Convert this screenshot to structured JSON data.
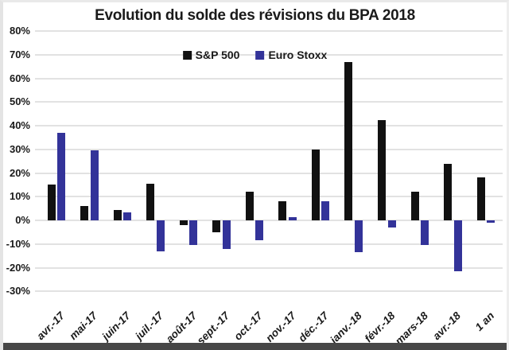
{
  "chart_data": {
    "type": "bar",
    "title": "Evolution du solde des révisions du BPA 2018",
    "categories": [
      "avr.-17",
      "mai-17",
      "juin-17",
      "juil.-17",
      "août-17",
      "sept.-17",
      "oct.-17",
      "nov.-17",
      "déc.-17",
      "janv.-18",
      "févr.-18",
      "mars-18",
      "avr.-18",
      "1 an"
    ],
    "series": [
      {
        "name": "S&P 500",
        "color": "#111111",
        "values": [
          15,
          6,
          4.5,
          15.5,
          -2,
          -5,
          12,
          8,
          30,
          67,
          42.5,
          12,
          24,
          18
        ]
      },
      {
        "name": "Euro Stoxx",
        "color": "#333399",
        "values": [
          37,
          29.5,
          3.5,
          -13,
          -10.5,
          -12,
          -8.5,
          1.5,
          8,
          -13.5,
          -3,
          -10.5,
          -21.5,
          -1
        ]
      }
    ],
    "ylabel": "",
    "xlabel": "",
    "ylim": [
      -30,
      80
    ],
    "ytick_step": 10,
    "ytick_labels": [
      "80%",
      "70%",
      "60%",
      "50%",
      "40%",
      "30%",
      "20%",
      "10%",
      "0%",
      "-10%",
      "-20%",
      "-30%"
    ],
    "grid": true,
    "legend_position": "top-center",
    "colors": {
      "sp500": "#111111",
      "euro_stoxx": "#333399",
      "gridline": "#e2e2e2",
      "text": "#1a1a1a",
      "bottom_border": "#474747"
    }
  }
}
